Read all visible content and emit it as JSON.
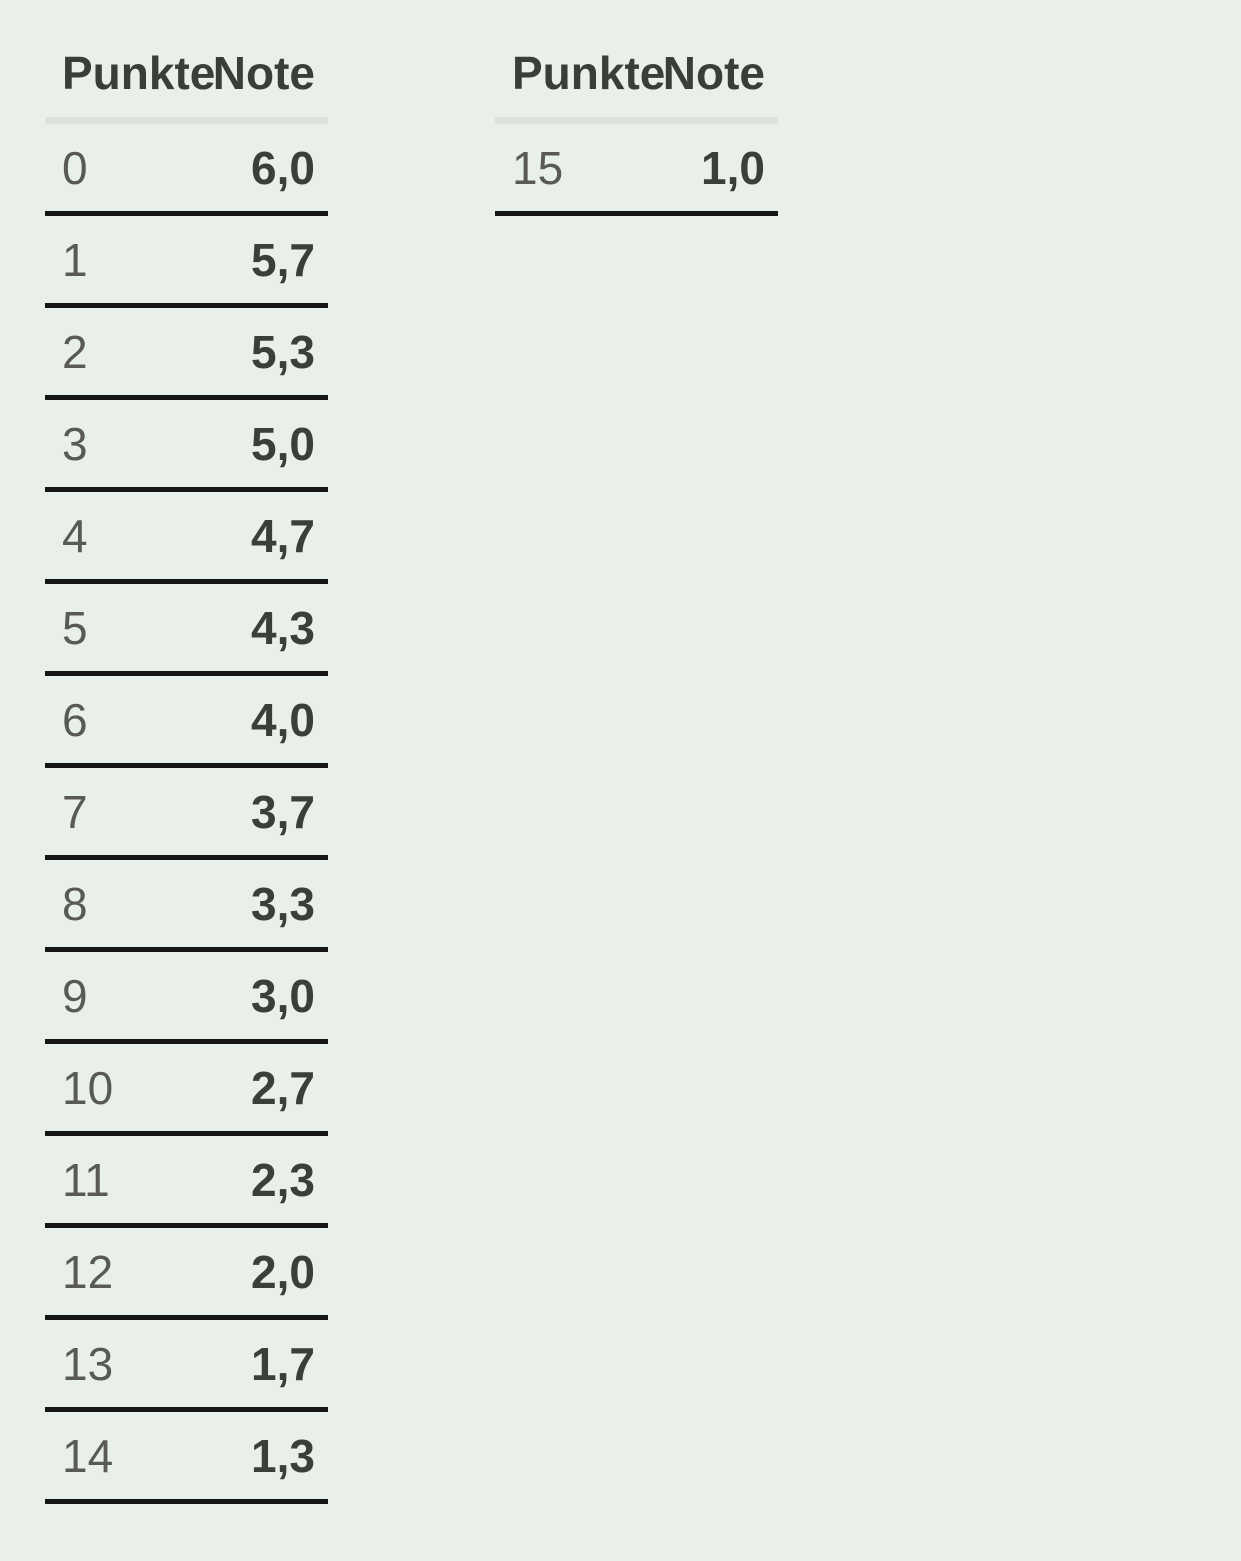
{
  "colors": {
    "background": "#e9f0ea",
    "header_text": "#3b3d37",
    "points_text": "#595a53",
    "note_text": "#3c3e38",
    "header_rule": "#dfe1dd",
    "row_rule": "#161616"
  },
  "tables": [
    {
      "headers": {
        "punkte": "Punkte",
        "note": "Note"
      },
      "rows": [
        {
          "punkte": "0",
          "note": "6,0"
        },
        {
          "punkte": "1",
          "note": "5,7"
        },
        {
          "punkte": "2",
          "note": "5,3"
        },
        {
          "punkte": "3",
          "note": "5,0"
        },
        {
          "punkte": "4",
          "note": "4,7"
        },
        {
          "punkte": "5",
          "note": "4,3"
        },
        {
          "punkte": "6",
          "note": "4,0"
        },
        {
          "punkte": "7",
          "note": "3,7"
        },
        {
          "punkte": "8",
          "note": "3,3"
        },
        {
          "punkte": "9",
          "note": "3,0"
        },
        {
          "punkte": "10",
          "note": "2,7"
        },
        {
          "punkte": "11",
          "note": "2,3"
        },
        {
          "punkte": "12",
          "note": "2,0"
        },
        {
          "punkte": "13",
          "note": "1,7"
        },
        {
          "punkte": "14",
          "note": "1,3"
        }
      ]
    },
    {
      "headers": {
        "punkte": "Punkte",
        "note": "Note"
      },
      "rows": [
        {
          "punkte": "15",
          "note": "1,0"
        }
      ]
    }
  ]
}
